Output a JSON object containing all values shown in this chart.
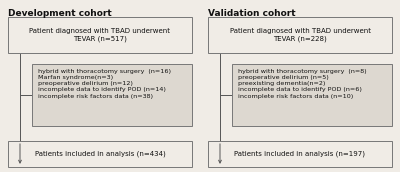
{
  "bg_color": "#f0ece6",
  "title_left": "Development cohort",
  "title_right": "Validation cohort",
  "box1_left": "Patient diagnosed with TBAD underwent\nTEVAR (n=517)",
  "box2_left": "hybrid with thoracotomy surgery  (n=16)\nMarfan syndrome(n=3)\npreoperative delirium (n=12)\nincomplete data to identify POD (n=14)\nincomplete risk factors data (n=38)",
  "box3_left": "Patients included in analysis (n=434)",
  "box1_right": "Patient diagnosed with TBAD underwent\nTEVAR (n=228)",
  "box2_right": "hybrid with thoracotomy surgery  (n=8)\npreoperative delirium (n=5)\npreexisting dementia(n=2)\nincomplete data to identify POD (n=6)\nincomplete risk factors data (n=10)",
  "box3_right": "Patients included in analysis (n=197)",
  "font_size_title": 6.5,
  "font_size_box1": 5.0,
  "font_size_box2": 4.6,
  "font_size_box3": 5.0,
  "box_facecolor": "#f0ece6",
  "box2_facecolor": "#ddd8d0",
  "box_edgecolor": "#777777",
  "text_color": "#111111",
  "arrow_color": "#555555"
}
